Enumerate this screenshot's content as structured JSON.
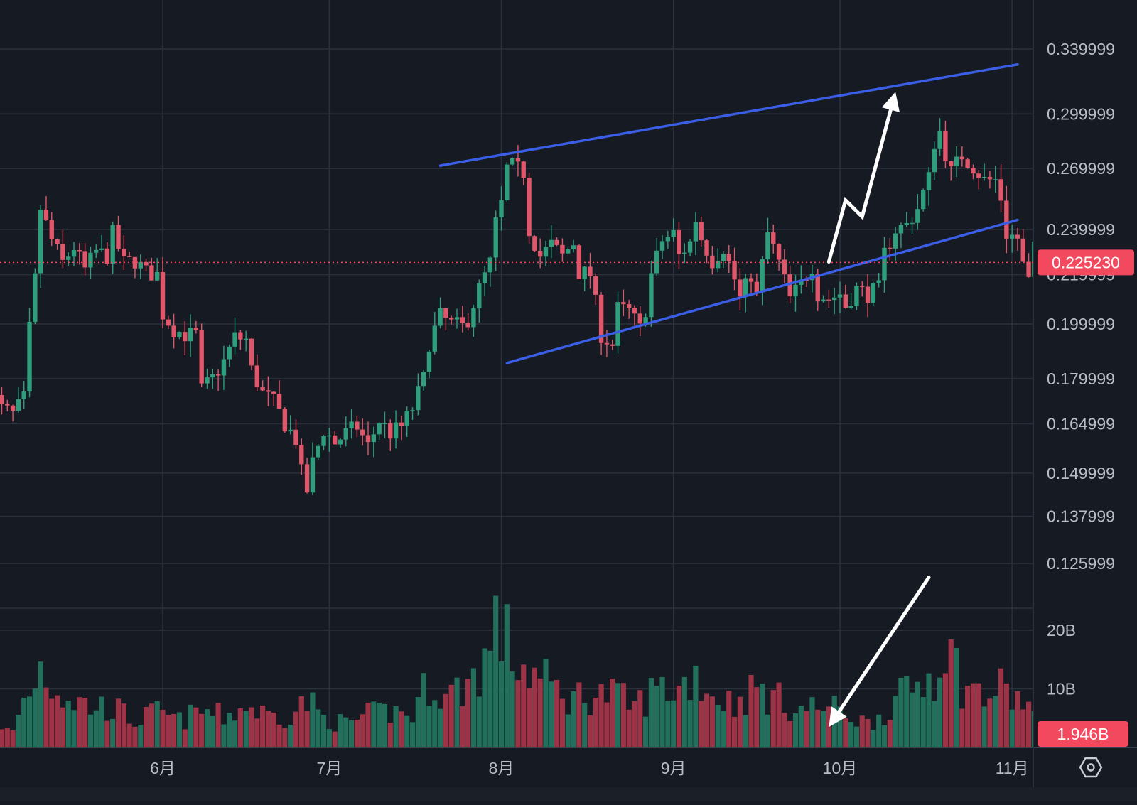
{
  "colors": {
    "background": "#161a22",
    "grid": "#2b313c",
    "up": "#2f9e7c",
    "down": "#e0566a",
    "up_volume": "#22705c",
    "down_volume": "#9c3347",
    "trendline": "#3a5ee6",
    "annotation_arrow": "#ffffff",
    "last_price_badge": "#f2495e",
    "axis_text": "#b7bcc6"
  },
  "icons": {
    "settings": "hexagon-settings-icon"
  },
  "chart_data": {
    "type": "candlestick",
    "price_scale": "log",
    "price_range": [
      0.118,
      0.345
    ],
    "price_ticks": [
      0.339999,
      0.299999,
      0.269999,
      0.239999,
      0.219999,
      0.199999,
      0.179999,
      0.164999,
      0.149999,
      0.137999,
      0.125999
    ],
    "price_tick_labels": [
      "0.339999",
      "0.299999",
      "0.269999",
      "0.239999",
      "0.219999",
      "0.199999",
      "0.179999",
      "0.164999",
      "0.149999",
      "0.137999",
      "0.125999"
    ],
    "last_price": 0.22523,
    "last_price_label": "0.225230",
    "volume_ticks_b": [
      20,
      10
    ],
    "volume_tick_labels": [
      "20B",
      "10B"
    ],
    "volume_max_b": 24,
    "last_volume_label": "1.946B",
    "x_range": [
      "2024-05-01",
      "2024-11-01"
    ],
    "month_ticks": [
      {
        "date": "2024-06-01",
        "label": "6月"
      },
      {
        "date": "2024-07-01",
        "label": "7月"
      },
      {
        "date": "2024-08-01",
        "label": "8月"
      },
      {
        "date": "2024-09-01",
        "label": "9月"
      },
      {
        "date": "2024-10-01",
        "label": "10月"
      },
      {
        "date": "2024-11-01",
        "label": "11月"
      }
    ],
    "first_candle_date": "2024-05-01",
    "candle_interval_days": 1,
    "price_path": [
      [
        0,
        0.176
      ],
      [
        2,
        0.17
      ],
      [
        4,
        0.168
      ],
      [
        6,
        0.173
      ],
      [
        7,
        0.198
      ],
      [
        8,
        0.218
      ],
      [
        9,
        0.25
      ],
      [
        11,
        0.235
      ],
      [
        13,
        0.225
      ],
      [
        15,
        0.232
      ],
      [
        17,
        0.222
      ],
      [
        19,
        0.23
      ],
      [
        21,
        0.228
      ],
      [
        22,
        0.238
      ],
      [
        24,
        0.225
      ],
      [
        26,
        0.226
      ],
      [
        28,
        0.221
      ],
      [
        30,
        0.22
      ],
      [
        31,
        0.204
      ],
      [
        33,
        0.198
      ],
      [
        35,
        0.196
      ],
      [
        37,
        0.196
      ],
      [
        38,
        0.176
      ],
      [
        40,
        0.18
      ],
      [
        42,
        0.186
      ],
      [
        44,
        0.195
      ],
      [
        46,
        0.194
      ],
      [
        47,
        0.183
      ],
      [
        49,
        0.175
      ],
      [
        51,
        0.172
      ],
      [
        53,
        0.165
      ],
      [
        55,
        0.16
      ],
      [
        56,
        0.15
      ],
      [
        57,
        0.145
      ],
      [
        58,
        0.153
      ],
      [
        60,
        0.163
      ],
      [
        62,
        0.159
      ],
      [
        64,
        0.162
      ],
      [
        66,
        0.164
      ],
      [
        68,
        0.158
      ],
      [
        70,
        0.166
      ],
      [
        72,
        0.162
      ],
      [
        74,
        0.164
      ],
      [
        76,
        0.17
      ],
      [
        78,
        0.18
      ],
      [
        79,
        0.193
      ],
      [
        81,
        0.203
      ],
      [
        83,
        0.2
      ],
      [
        85,
        0.199
      ],
      [
        86,
        0.202
      ],
      [
        88,
        0.214
      ],
      [
        90,
        0.225
      ],
      [
        91,
        0.243
      ],
      [
        92,
        0.252
      ],
      [
        93,
        0.27
      ],
      [
        94,
        0.271
      ],
      [
        96,
        0.268
      ],
      [
        97,
        0.24
      ],
      [
        99,
        0.228
      ],
      [
        101,
        0.233
      ],
      [
        103,
        0.228
      ],
      [
        105,
        0.234
      ],
      [
        106,
        0.221
      ],
      [
        108,
        0.22
      ],
      [
        109,
        0.208
      ],
      [
        110,
        0.196
      ],
      [
        112,
        0.192
      ],
      [
        113,
        0.206
      ],
      [
        115,
        0.205
      ],
      [
        117,
        0.198
      ],
      [
        118,
        0.206
      ],
      [
        119,
        0.22
      ],
      [
        121,
        0.235
      ],
      [
        123,
        0.238
      ],
      [
        124,
        0.228
      ],
      [
        126,
        0.234
      ],
      [
        127,
        0.245
      ],
      [
        128,
        0.236
      ],
      [
        130,
        0.226
      ],
      [
        132,
        0.232
      ],
      [
        134,
        0.218
      ],
      [
        135,
        0.21
      ],
      [
        137,
        0.22
      ],
      [
        138,
        0.211
      ],
      [
        140,
        0.238
      ],
      [
        142,
        0.225
      ],
      [
        144,
        0.21
      ],
      [
        146,
        0.216
      ],
      [
        148,
        0.224
      ],
      [
        149,
        0.212
      ],
      [
        151,
        0.21
      ],
      [
        153,
        0.212
      ],
      [
        154,
        0.207
      ],
      [
        156,
        0.214
      ],
      [
        158,
        0.212
      ],
      [
        160,
        0.214
      ],
      [
        161,
        0.229
      ],
      [
        163,
        0.24
      ],
      [
        165,
        0.242
      ],
      [
        167,
        0.25
      ],
      [
        169,
        0.265
      ],
      [
        170,
        0.284
      ],
      [
        171,
        0.29
      ],
      [
        172,
        0.278
      ],
      [
        173,
        0.268
      ],
      [
        175,
        0.277
      ],
      [
        177,
        0.271
      ],
      [
        179,
        0.264
      ],
      [
        181,
        0.264
      ],
      [
        182,
        0.255
      ],
      [
        183,
        0.238
      ],
      [
        185,
        0.236
      ],
      [
        186,
        0.224
      ],
      [
        187,
        0.217
      ],
      [
        188,
        0.231
      ],
      [
        189,
        0.222
      ],
      [
        191,
        0.225
      ]
    ],
    "volume_path_b": [
      [
        0,
        2.6
      ],
      [
        4,
        3.0
      ],
      [
        6,
        8.0
      ],
      [
        9,
        14.0
      ],
      [
        11,
        11.0
      ],
      [
        14,
        8.5
      ],
      [
        18,
        7.0
      ],
      [
        22,
        6.8
      ],
      [
        26,
        4.5
      ],
      [
        30,
        6.0
      ],
      [
        34,
        4.5
      ],
      [
        38,
        6.2
      ],
      [
        42,
        5.2
      ],
      [
        46,
        7.0
      ],
      [
        50,
        5.5
      ],
      [
        54,
        5.5
      ],
      [
        57,
        8.0
      ],
      [
        60,
        5.0
      ],
      [
        64,
        4.0
      ],
      [
        68,
        5.5
      ],
      [
        72,
        6.2
      ],
      [
        76,
        5.5
      ],
      [
        79,
        11.5
      ],
      [
        82,
        8.5
      ],
      [
        86,
        11.0
      ],
      [
        88,
        13.5
      ],
      [
        90,
        16.5
      ],
      [
        91,
        21.0
      ],
      [
        93,
        18.0
      ],
      [
        95,
        14.0
      ],
      [
        97,
        13.0
      ],
      [
        100,
        11.0
      ],
      [
        104,
        8.5
      ],
      [
        108,
        9.0
      ],
      [
        112,
        9.0
      ],
      [
        116,
        7.0
      ],
      [
        120,
        10.0
      ],
      [
        124,
        10.0
      ],
      [
        127,
        12.5
      ],
      [
        130,
        9.0
      ],
      [
        134,
        7.5
      ],
      [
        138,
        10.0
      ],
      [
        142,
        8.0
      ],
      [
        146,
        6.5
      ],
      [
        150,
        7.0
      ],
      [
        154,
        6.0
      ],
      [
        158,
        4.0
      ],
      [
        162,
        7.0
      ],
      [
        166,
        10.0
      ],
      [
        170,
        13.0
      ],
      [
        172,
        18.0
      ],
      [
        175,
        11.0
      ],
      [
        179,
        8.5
      ],
      [
        182,
        10.0
      ],
      [
        185,
        8.0
      ],
      [
        187,
        7.5
      ],
      [
        189,
        3.5
      ],
      [
        191,
        1.946
      ]
    ],
    "trendlines": [
      {
        "from": {
          "date": "2024-07-21",
          "price": 0.2715
        },
        "to": {
          "date": "2024-11-02",
          "price": 0.33
        }
      },
      {
        "from": {
          "date": "2024-08-02",
          "price": 0.1855
        },
        "to": {
          "date": "2024-11-02",
          "price": 0.2445
        }
      }
    ],
    "annotations": [
      {
        "type": "zigzag-arrow",
        "points": [
          {
            "date": "2024-09-29",
            "price": 0.2255
          },
          {
            "date": "2024-10-02",
            "price": 0.254
          },
          {
            "date": "2024-10-05",
            "price": 0.246
          },
          {
            "date": "2024-10-11",
            "price": 0.313
          }
        ]
      },
      {
        "type": "arrow",
        "from": {
          "date": "2024-10-17",
          "volume_b": 29
        },
        "to": {
          "date": "2024-09-29",
          "volume_b": 3.5
        }
      }
    ]
  }
}
